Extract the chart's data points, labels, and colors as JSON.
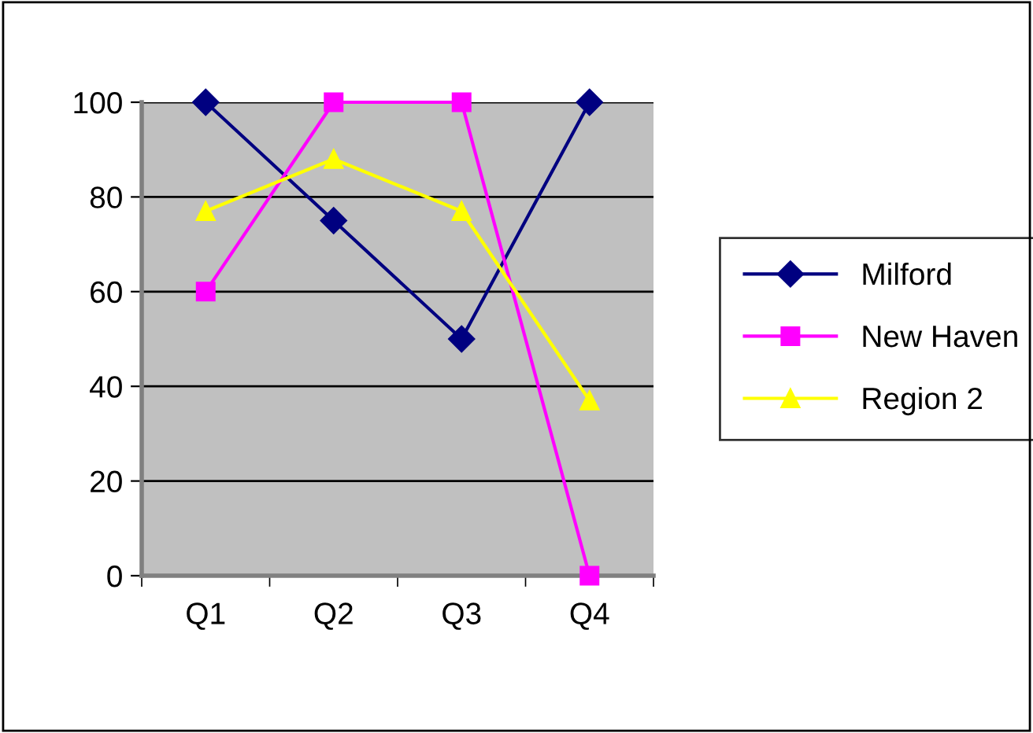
{
  "chart_data": {
    "type": "line",
    "categories": [
      "Q1",
      "Q2",
      "Q3",
      "Q4"
    ],
    "series": [
      {
        "name": "Milford",
        "color": "#000080",
        "marker": "diamond",
        "values": [
          100,
          75,
          50,
          100
        ]
      },
      {
        "name": "New Haven",
        "color": "#ff00ff",
        "marker": "square",
        "values": [
          60,
          100,
          100,
          0
        ]
      },
      {
        "name": "Region 2",
        "color": "#ffff00",
        "marker": "triangle",
        "values": [
          77,
          88,
          77,
          37
        ]
      }
    ],
    "ylim": [
      0,
      100
    ],
    "yticks": [
      0,
      20,
      40,
      60,
      80,
      100
    ],
    "grid": "y",
    "legend": "right"
  }
}
